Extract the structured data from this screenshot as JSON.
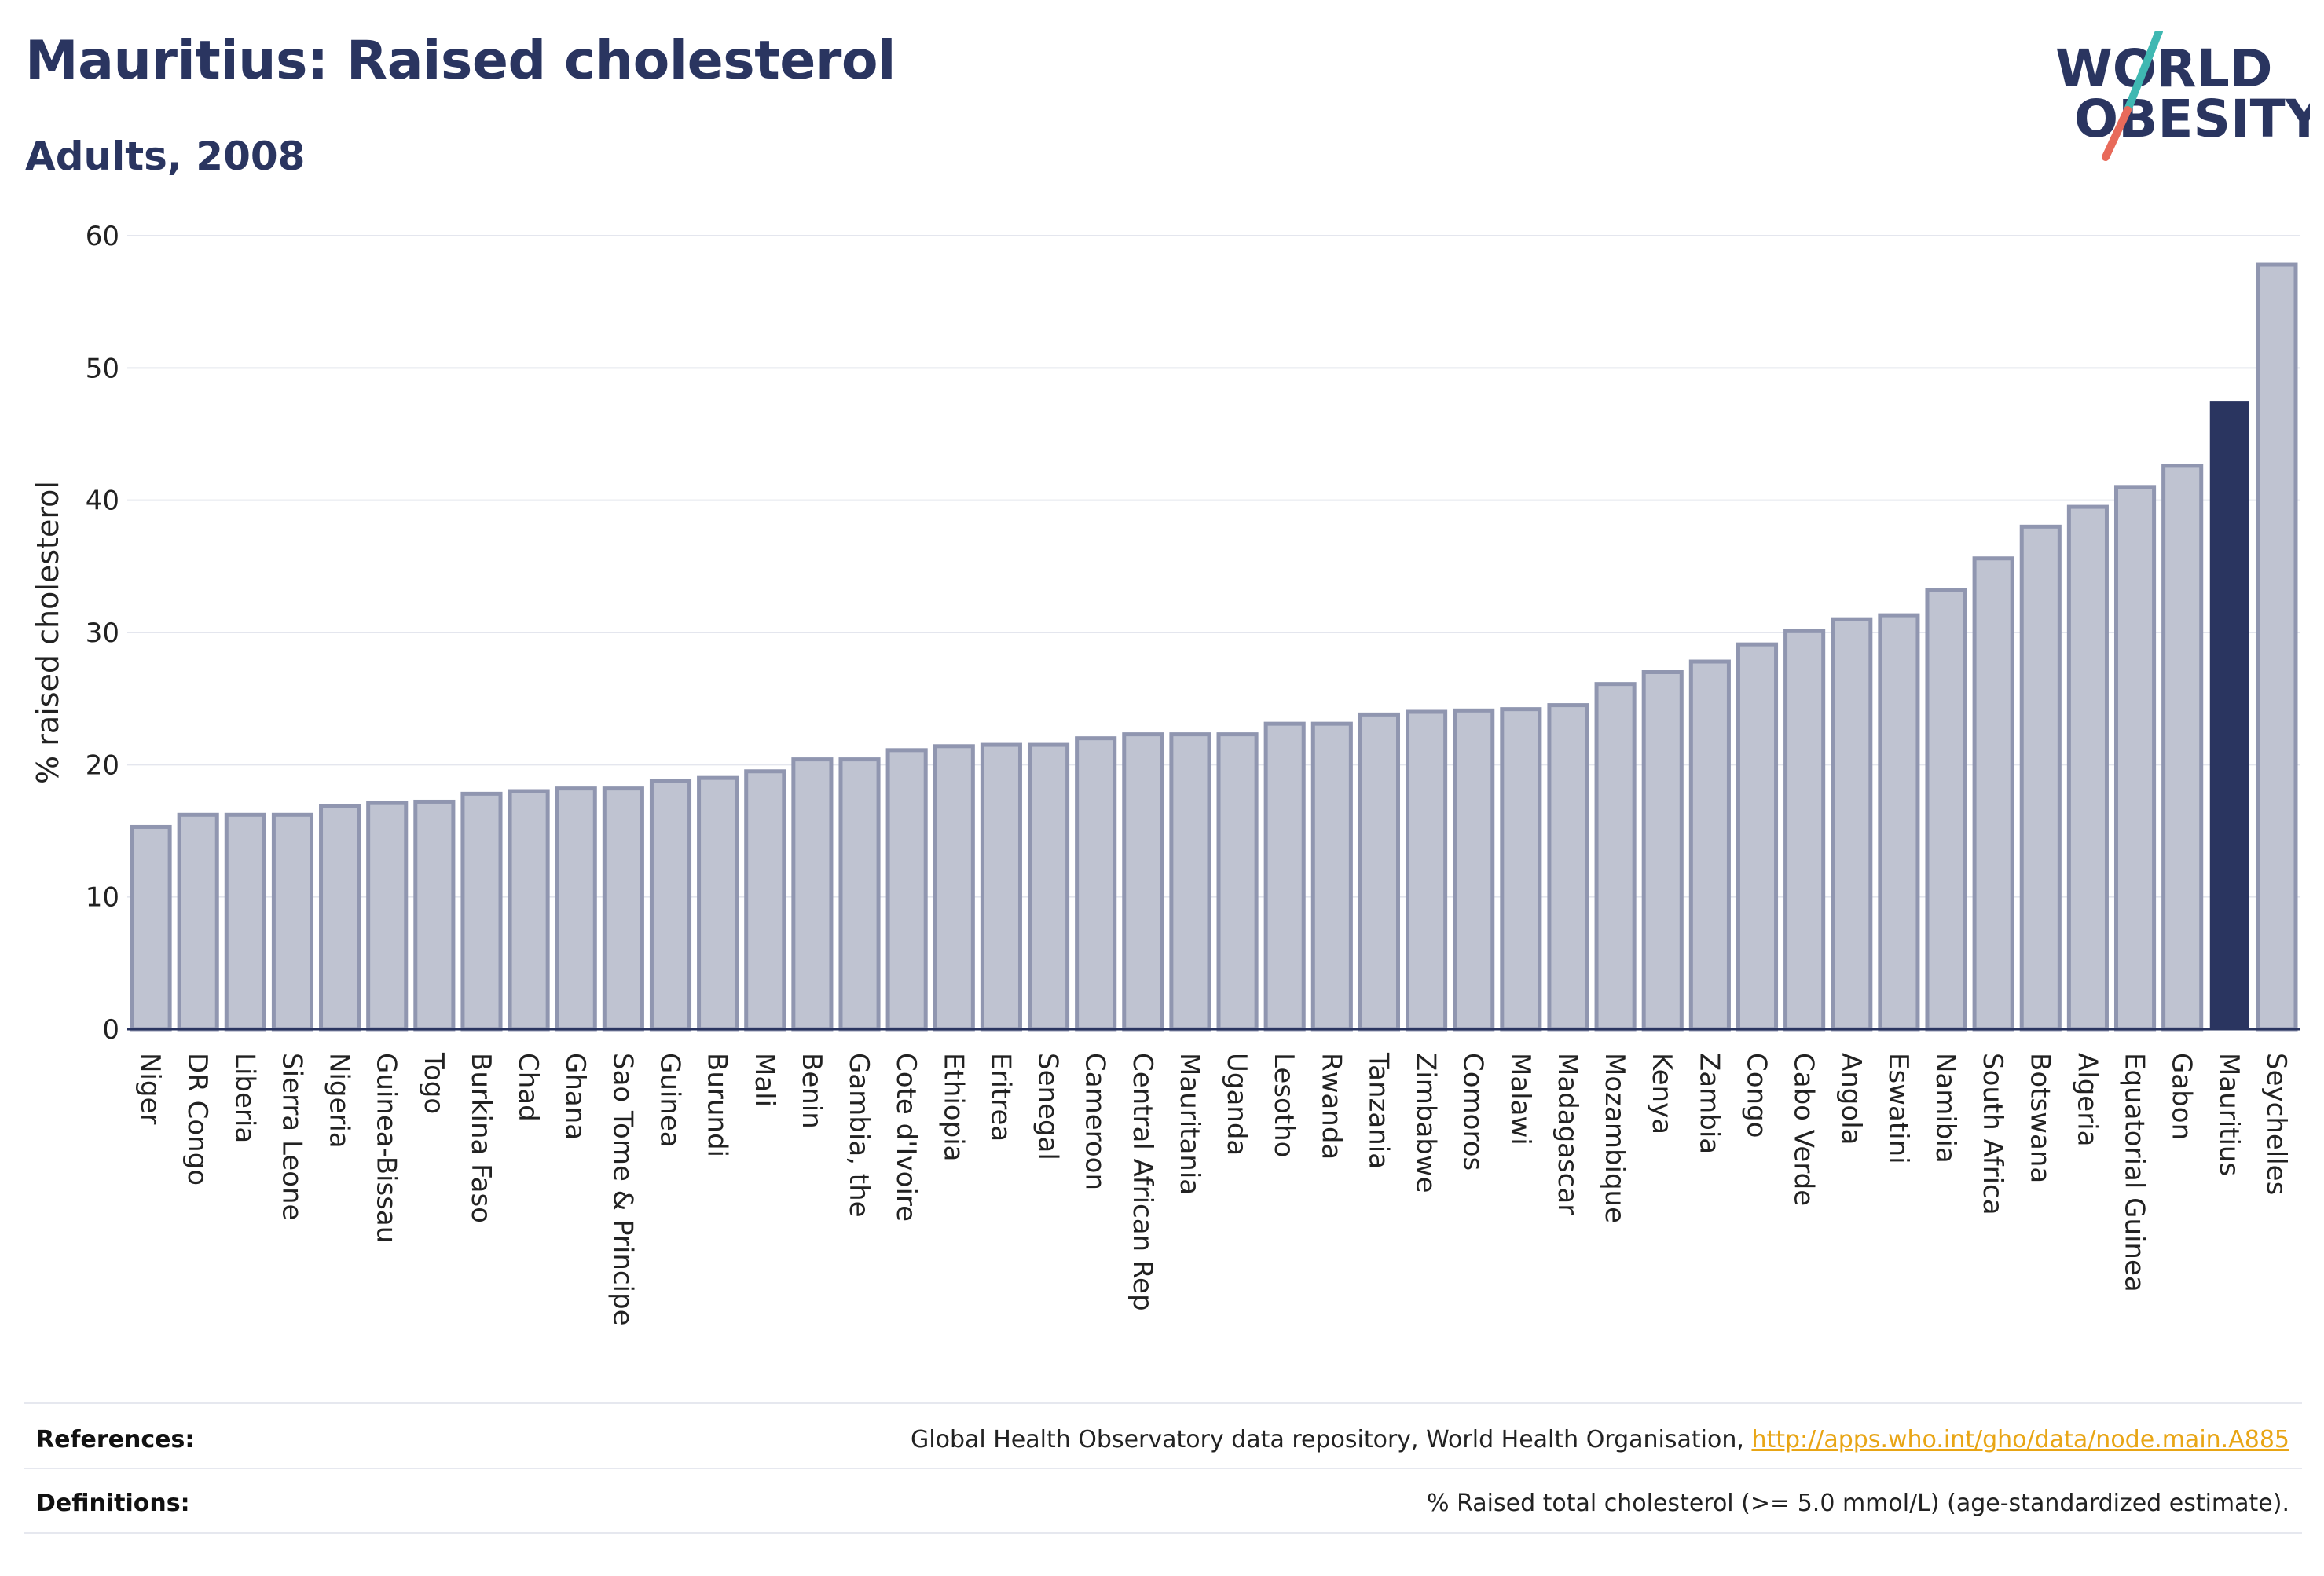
{
  "header": {
    "title": "Mauritius: Raised cholesterol",
    "subtitle": "Adults, 2008"
  },
  "logo": {
    "line1": "WORLD",
    "line2": "OBESITY",
    "colors": {
      "text": "#2a3560",
      "slash_top": "#3fb8b2",
      "slash_bottom": "#e86a5a"
    }
  },
  "chart_data": {
    "type": "bar",
    "ylabel": "% raised cholesterol",
    "xlabel": "",
    "ylim": [
      0,
      60
    ],
    "yticks": [
      0,
      10,
      20,
      30,
      40,
      50,
      60
    ],
    "grid": true,
    "highlight": "Mauritius",
    "colors": {
      "bar": "#bfc3d1",
      "bar_edge": "#9096b0",
      "highlight": "#2a3560",
      "grid": "#e4e6ee"
    },
    "categories": [
      "Niger",
      "DR Congo",
      "Liberia",
      "Sierra Leone",
      "Nigeria",
      "Guinea-Bissau",
      "Togo",
      "Burkina Faso",
      "Chad",
      "Ghana",
      "Sao Tome & Principe",
      "Guinea",
      "Burundi",
      "Mali",
      "Benin",
      "Gambia, the",
      "Cote d'Ivoire",
      "Ethiopia",
      "Eritrea",
      "Senegal",
      "Cameroon",
      "Central African Rep",
      "Mauritania",
      "Uganda",
      "Lesotho",
      "Rwanda",
      "Tanzania",
      "Zimbabwe",
      "Comoros",
      "Malawi",
      "Madagascar",
      "Mozambique",
      "Kenya",
      "Zambia",
      "Congo",
      "Cabo Verde",
      "Angola",
      "Eswatini",
      "Namibia",
      "South Africa",
      "Botswana",
      "Algeria",
      "Equatorial Guinea",
      "Gabon",
      "Mauritius",
      "Seychelles"
    ],
    "values": [
      15.3,
      16.2,
      16.2,
      16.2,
      16.9,
      17.1,
      17.2,
      17.8,
      18.0,
      18.2,
      18.2,
      18.8,
      19.0,
      19.5,
      20.4,
      20.4,
      21.1,
      21.4,
      21.5,
      21.5,
      22.0,
      22.3,
      22.3,
      22.3,
      23.1,
      23.1,
      23.8,
      24.0,
      24.1,
      24.2,
      24.5,
      26.1,
      27.0,
      27.8,
      29.1,
      30.1,
      31.0,
      31.3,
      33.2,
      35.6,
      38.0,
      39.5,
      41.0,
      42.6,
      47.4,
      57.8
    ]
  },
  "footer": {
    "references_label": "References:",
    "references_text": "Global Health Observatory data repository, World Health Organisation, ",
    "references_link": "http://apps.who.int/gho/data/node.main.A885",
    "definitions_label": "Definitions:",
    "definitions_text": "% Raised total cholesterol (>= 5.0 mmol/L) (age-standardized estimate)."
  }
}
